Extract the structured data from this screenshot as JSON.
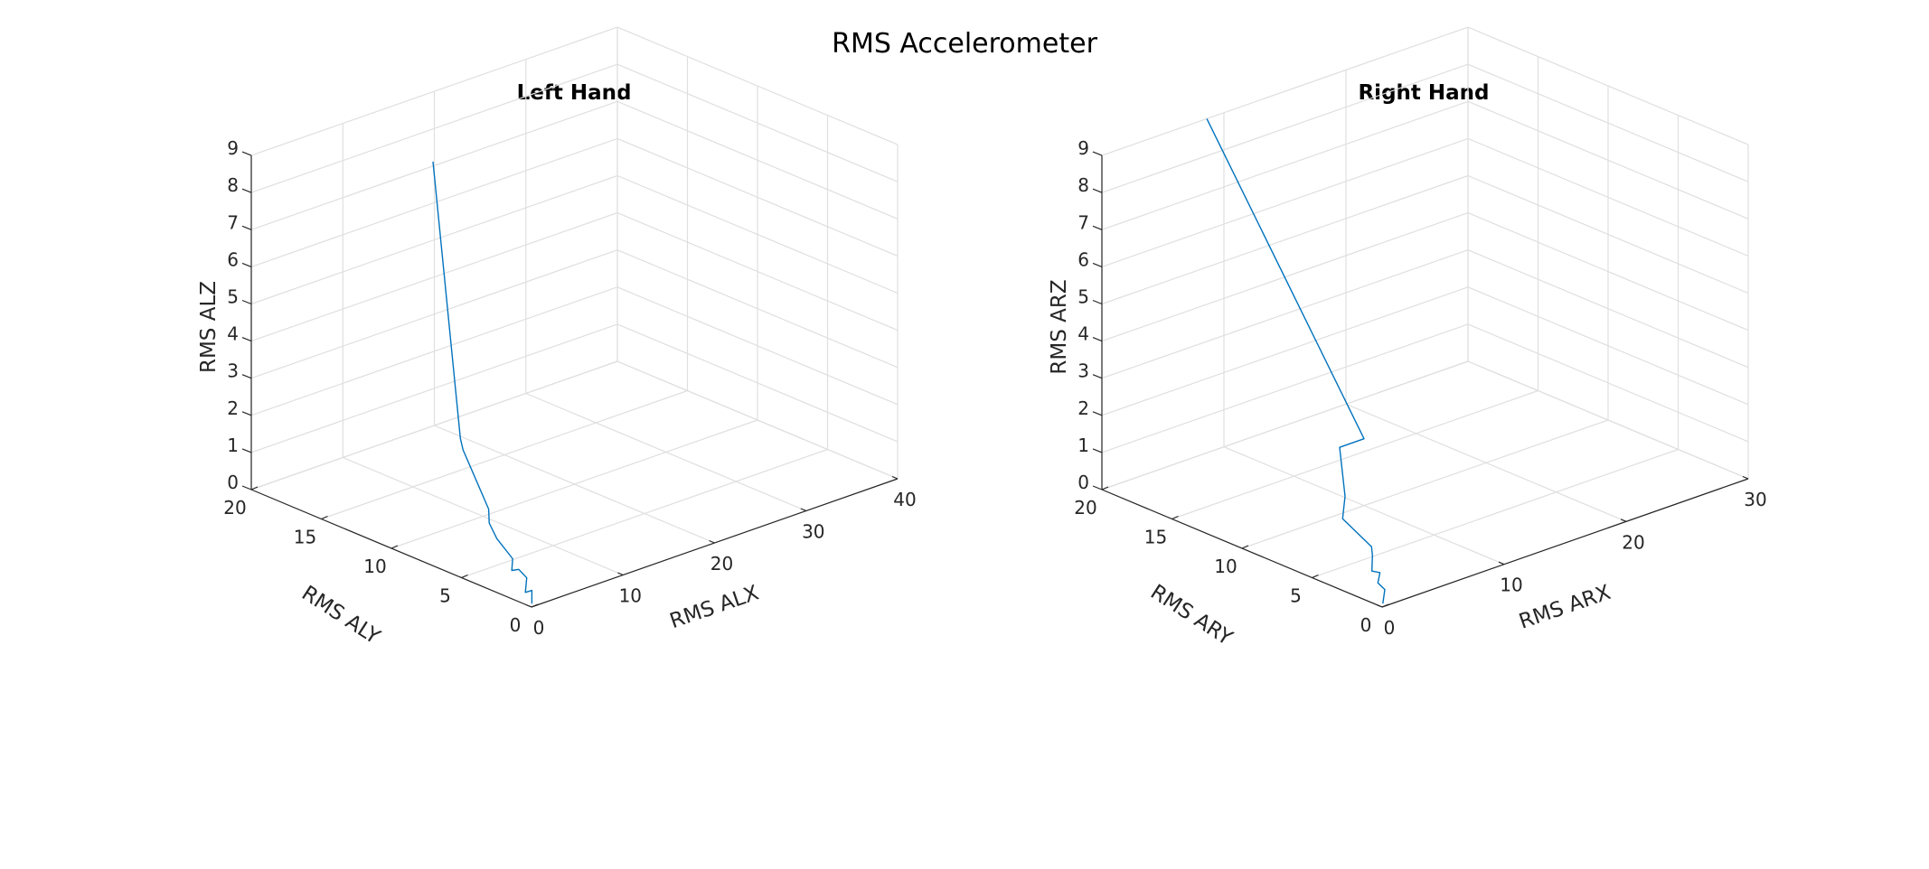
{
  "chart_data": {
    "title": "RMS Accelerometer",
    "colors": {
      "line": "#0072bd",
      "grid": "#dfdfdf",
      "axis": "#262626"
    },
    "plots": [
      {
        "type": "line3d",
        "title": "Left Hand",
        "xlabel": "RMS ALX",
        "ylabel": "RMS ALY",
        "zlabel": "RMS ALZ",
        "xlim": [
          0,
          40
        ],
        "ylim": [
          0,
          20
        ],
        "zlim": [
          0,
          9
        ],
        "xticks": [
          0,
          10,
          20,
          30,
          40
        ],
        "yticks": [
          0,
          5,
          10,
          15,
          20
        ],
        "zticks": [
          0,
          1,
          2,
          3,
          4,
          5,
          6,
          7,
          8,
          9
        ],
        "grid": true,
        "points": [
          {
            "x": 0.5,
            "y": 0.3,
            "z": 0.0
          },
          {
            "x": 0.8,
            "y": 0.5,
            "z": 0.3
          },
          {
            "x": 0.4,
            "y": 0.7,
            "z": 0.25
          },
          {
            "x": 0.7,
            "y": 0.8,
            "z": 0.6
          },
          {
            "x": 0.9,
            "y": 1.5,
            "z": 0.7
          },
          {
            "x": 0.6,
            "y": 1.8,
            "z": 0.65
          },
          {
            "x": 1.0,
            "y": 2.0,
            "z": 0.9
          },
          {
            "x": 0.8,
            "y": 3.0,
            "z": 1.3
          },
          {
            "x": 1.5,
            "y": 4.0,
            "z": 1.5
          },
          {
            "x": 4.5,
            "y": 6.0,
            "z": 1.3
          },
          {
            "x": 4.0,
            "y": 7.5,
            "z": 2.7
          },
          {
            "x": 6.0,
            "y": 9.0,
            "z": 2.6
          },
          {
            "x": 7.3,
            "y": 11.8,
            "z": 9.5
          }
        ]
      },
      {
        "type": "line3d",
        "title": "Right Hand",
        "xlabel": "RMS ARX",
        "ylabel": "RMS ARY",
        "zlabel": "RMS ARZ",
        "xlim": [
          0,
          30
        ],
        "ylim": [
          0,
          20
        ],
        "zlim": [
          0,
          9
        ],
        "xticks": [
          0,
          10,
          20,
          30
        ],
        "yticks": [
          0,
          5,
          10,
          15,
          20
        ],
        "zticks": [
          0,
          1,
          2,
          3,
          4,
          5,
          6,
          7,
          8,
          9
        ],
        "grid": true,
        "points": [
          {
            "x": 0.4,
            "y": 0.3,
            "z": 0.0
          },
          {
            "x": 0.8,
            "y": 0.5,
            "z": 0.3
          },
          {
            "x": 0.8,
            "y": 1.0,
            "z": 0.4
          },
          {
            "x": 1.2,
            "y": 1.2,
            "z": 0.6
          },
          {
            "x": 1.0,
            "y": 1.6,
            "z": 0.6
          },
          {
            "x": 1.5,
            "y": 2.0,
            "z": 0.9
          },
          {
            "x": 2.0,
            "y": 2.5,
            "z": 1.0
          },
          {
            "x": 2.5,
            "y": 5.0,
            "z": 1.3
          },
          {
            "x": 5.0,
            "y": 7.0,
            "z": 1.3
          },
          {
            "x": 8.0,
            "y": 10.0,
            "z": 1.8
          },
          {
            "x": 10.0,
            "y": 10.0,
            "z": 1.8
          },
          {
            "x": 8.6,
            "y": 20.0,
            "z": 9.0
          }
        ]
      }
    ]
  }
}
